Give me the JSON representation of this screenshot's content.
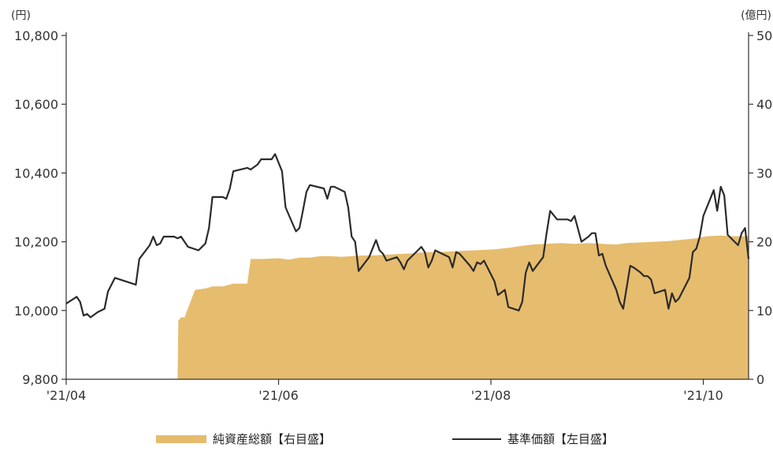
{
  "chart_data": {
    "type": "line",
    "left_axis": {
      "unit": "(円)",
      "ticks": [
        "9,800",
        "10,000",
        "10,200",
        "10,400",
        "10,600",
        "10,800"
      ],
      "ylim": [
        9800,
        10800
      ]
    },
    "right_axis": {
      "unit": "(億円)",
      "ticks": [
        "0",
        "10",
        "20",
        "30",
        "40",
        "50"
      ],
      "ylim": [
        0,
        50
      ]
    },
    "x_ticks": [
      {
        "label": "'21/04",
        "day": 0
      },
      {
        "label": "'21/06",
        "day": 61
      },
      {
        "label": "'21/08",
        "day": 122
      },
      {
        "label": "'21/10",
        "day": 183
      }
    ],
    "x_range": [
      0,
      196
    ],
    "series": [
      {
        "name": "純資産総額【右目盛】",
        "axis": "right",
        "kind": "area",
        "color": "#e6bc6e",
        "points": [
          [
            32,
            0
          ],
          [
            32.2,
            8.5
          ],
          [
            33,
            9.0
          ],
          [
            34,
            9.0
          ],
          [
            37,
            13.0
          ],
          [
            40,
            13.2
          ],
          [
            42,
            13.5
          ],
          [
            45,
            13.5
          ],
          [
            48,
            13.9
          ],
          [
            52,
            13.9
          ],
          [
            53,
            17.5
          ],
          [
            57,
            17.5
          ],
          [
            61,
            17.6
          ],
          [
            64,
            17.4
          ],
          [
            67,
            17.7
          ],
          [
            70,
            17.7
          ],
          [
            73,
            17.9
          ],
          [
            76,
            17.9
          ],
          [
            79,
            17.8
          ],
          [
            82,
            17.9
          ],
          [
            85,
            18.0
          ],
          [
            88,
            18.0
          ],
          [
            91,
            18.1
          ],
          [
            95,
            18.2
          ],
          [
            99,
            18.3
          ],
          [
            103,
            18.5
          ],
          [
            107,
            18.5
          ],
          [
            111,
            18.6
          ],
          [
            115,
            18.7
          ],
          [
            119,
            18.8
          ],
          [
            123,
            18.9
          ],
          [
            127,
            19.1
          ],
          [
            131,
            19.4
          ],
          [
            134,
            19.6
          ],
          [
            138,
            19.7
          ],
          [
            142,
            19.8
          ],
          [
            146,
            19.7
          ],
          [
            150,
            19.8
          ],
          [
            154,
            19.7
          ],
          [
            158,
            19.6
          ],
          [
            161,
            19.8
          ],
          [
            165,
            19.9
          ],
          [
            169,
            20.0
          ],
          [
            173,
            20.1
          ],
          [
            177,
            20.3
          ],
          [
            181,
            20.5
          ],
          [
            184,
            20.8
          ],
          [
            188,
            20.9
          ],
          [
            192,
            20.8
          ],
          [
            196,
            20.8
          ]
        ]
      },
      {
        "name": "基準価額【左目盛】",
        "axis": "left",
        "kind": "line",
        "color": "#2b2b2b",
        "points": [
          [
            0,
            10020
          ],
          [
            3,
            10040
          ],
          [
            4,
            10025
          ],
          [
            5,
            9985
          ],
          [
            6,
            9990
          ],
          [
            7,
            9980
          ],
          [
            9,
            9995
          ],
          [
            11,
            10005
          ],
          [
            12,
            10055
          ],
          [
            14,
            10095
          ],
          [
            20,
            10075
          ],
          [
            21,
            10150
          ],
          [
            24,
            10190
          ],
          [
            25,
            10215
          ],
          [
            26,
            10190
          ],
          [
            27,
            10195
          ],
          [
            28,
            10215
          ],
          [
            31,
            10215
          ],
          [
            32,
            10210
          ],
          [
            33,
            10215
          ],
          [
            35,
            10185
          ],
          [
            38,
            10175
          ],
          [
            40,
            10195
          ],
          [
            41,
            10240
          ],
          [
            42,
            10330
          ],
          [
            45,
            10330
          ],
          [
            46,
            10325
          ],
          [
            47,
            10355
          ],
          [
            48,
            10405
          ],
          [
            52,
            10415
          ],
          [
            53,
            10410
          ],
          [
            55,
            10425
          ],
          [
            56,
            10440
          ],
          [
            59,
            10440
          ],
          [
            60,
            10455
          ],
          [
            62,
            10405
          ],
          [
            63,
            10300
          ],
          [
            66,
            10230
          ],
          [
            67,
            10240
          ],
          [
            68,
            10290
          ],
          [
            69,
            10345
          ],
          [
            70,
            10365
          ],
          [
            74,
            10355
          ],
          [
            75,
            10325
          ],
          [
            76,
            10360
          ],
          [
            77,
            10360
          ],
          [
            80,
            10345
          ],
          [
            81,
            10300
          ],
          [
            82,
            10215
          ],
          [
            83,
            10200
          ],
          [
            84,
            10115
          ],
          [
            87,
            10155
          ],
          [
            88,
            10180
          ],
          [
            89,
            10205
          ],
          [
            90,
            10175
          ],
          [
            91,
            10165
          ],
          [
            92,
            10145
          ],
          [
            95,
            10155
          ],
          [
            96,
            10140
          ],
          [
            97,
            10120
          ],
          [
            98,
            10145
          ],
          [
            101,
            10175
          ],
          [
            102,
            10185
          ],
          [
            103,
            10170
          ],
          [
            104,
            10125
          ],
          [
            105,
            10145
          ],
          [
            106,
            10175
          ],
          [
            109,
            10160
          ],
          [
            110,
            10155
          ],
          [
            111,
            10125
          ],
          [
            112,
            10170
          ],
          [
            113,
            10165
          ],
          [
            116,
            10130
          ],
          [
            117,
            10115
          ],
          [
            118,
            10140
          ],
          [
            119,
            10135
          ],
          [
            120,
            10145
          ],
          [
            121,
            10125
          ],
          [
            123,
            10085
          ],
          [
            124,
            10045
          ],
          [
            126,
            10060
          ],
          [
            127,
            10010
          ],
          [
            130,
            10000
          ],
          [
            131,
            10025
          ],
          [
            132,
            10110
          ],
          [
            133,
            10140
          ],
          [
            134,
            10115
          ],
          [
            137,
            10155
          ],
          [
            138,
            10225
          ],
          [
            139,
            10290
          ],
          [
            141,
            10265
          ],
          [
            144,
            10265
          ],
          [
            145,
            10260
          ],
          [
            146,
            10275
          ],
          [
            148,
            10200
          ],
          [
            150,
            10215
          ],
          [
            151,
            10225
          ],
          [
            152,
            10225
          ],
          [
            153,
            10160
          ],
          [
            154,
            10165
          ],
          [
            155,
            10130
          ],
          [
            158,
            10060
          ],
          [
            159,
            10025
          ],
          [
            160,
            10005
          ],
          [
            162,
            10130
          ],
          [
            163,
            10125
          ],
          [
            165,
            10110
          ],
          [
            166,
            10100
          ],
          [
            167,
            10100
          ],
          [
            168,
            10090
          ],
          [
            169,
            10050
          ],
          [
            172,
            10060
          ],
          [
            173,
            10005
          ],
          [
            174,
            10050
          ],
          [
            175,
            10025
          ],
          [
            176,
            10035
          ],
          [
            179,
            10095
          ],
          [
            180,
            10170
          ],
          [
            181,
            10180
          ],
          [
            182,
            10215
          ],
          [
            183,
            10275
          ],
          [
            186,
            10350
          ],
          [
            187,
            10290
          ],
          [
            188,
            10360
          ],
          [
            189,
            10335
          ],
          [
            190,
            10220
          ],
          [
            193,
            10190
          ],
          [
            194,
            10225
          ],
          [
            195,
            10240
          ],
          [
            196,
            10150
          ]
        ]
      }
    ]
  },
  "legend": {
    "area_label": "純資産総額【右目盛】",
    "line_label": "基準価額【左目盛】"
  }
}
